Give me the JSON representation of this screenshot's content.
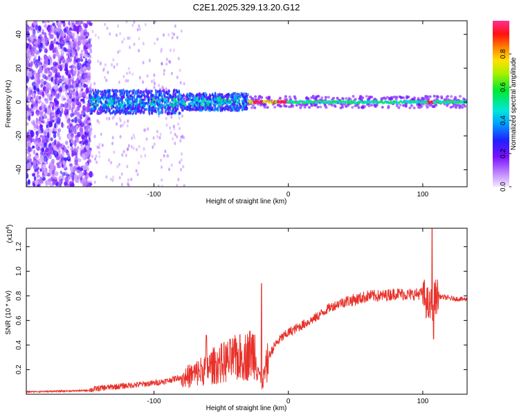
{
  "title": "C2E1.2025.329.13.20.G12",
  "chart_data": [
    {
      "type": "heatmap",
      "title": "C2E1.2025.329.13.20.G12",
      "xlabel": "Height of straight line (km)",
      "ylabel": "Frequency (Hz)",
      "xlim": [
        -195,
        133
      ],
      "ylim": [
        -50,
        48
      ],
      "xticks": [
        -100,
        0,
        100
      ],
      "xtick_labels": [
        "-100",
        "0",
        "100"
      ],
      "yticks": [
        40,
        20,
        0,
        -20,
        -40
      ],
      "ytick_labels": [
        "40",
        "20",
        "0",
        "-20",
        "-40"
      ],
      "colorbar": {
        "label": "Normalized spectral amplitude",
        "range": [
          0,
          1
        ],
        "ticks": [
          0.0,
          0.2,
          0.4,
          0.6,
          0.8
        ],
        "tick_labels": [
          "0.0",
          "0.2",
          "0.4",
          "0.6",
          "0.8"
        ],
        "colormap": "violet-blue-cyan-green-yellow-red-magenta"
      },
      "description_points": [
        {
          "x_range": [
            -195,
            -148
          ],
          "freq_spread": [
            -50,
            48
          ],
          "amplitude": 0.15
        },
        {
          "x_range": [
            -148,
            -30
          ],
          "freq_spread": [
            -6,
            6
          ],
          "amplitude": 0.35
        },
        {
          "x_range": [
            -30,
            0
          ],
          "freq_spread": [
            -2,
            2
          ],
          "amplitude": 0.9
        },
        {
          "x_range": [
            0,
            133
          ],
          "freq_spread": [
            -3,
            3
          ],
          "amplitude": 0.5
        }
      ]
    },
    {
      "type": "line",
      "xlabel": "Height of straight line (km)",
      "ylabel": "SNR (10 * v/v)",
      "yscale_label": "(x10",
      "yscale_exp": "4",
      "xlim": [
        -195,
        133
      ],
      "ylim": [
        0,
        1.35
      ],
      "xticks": [
        -100,
        0,
        100
      ],
      "xtick_labels": [
        "-100",
        "0",
        "100"
      ],
      "yticks": [
        0.2,
        0.4,
        0.6,
        0.8,
        1.0,
        1.2
      ],
      "ytick_labels": [
        "0.2",
        "0.4",
        "0.6",
        "0.8",
        "1.0",
        "1.2"
      ],
      "series": [
        {
          "name": "SNR",
          "color": "#e8312a",
          "x": [
            -195,
            -170,
            -150,
            -140,
            -120,
            -100,
            -90,
            -80,
            -70,
            -60,
            -50,
            -40,
            -30,
            -25,
            -20,
            -15,
            -10,
            -5,
            0,
            10,
            20,
            30,
            40,
            50,
            60,
            70,
            80,
            90,
            100,
            105,
            110,
            120,
            133
          ],
          "y": [
            0.02,
            0.025,
            0.03,
            0.05,
            0.07,
            0.09,
            0.11,
            0.14,
            0.18,
            0.24,
            0.28,
            0.32,
            0.35,
            0.4,
            0.08,
            0.3,
            0.4,
            0.46,
            0.5,
            0.56,
            0.62,
            0.7,
            0.75,
            0.77,
            0.8,
            0.8,
            0.82,
            0.81,
            0.82,
            0.7,
            0.8,
            0.78,
            0.77
          ],
          "peaks": [
            {
              "x": -61,
              "y": 0.48
            },
            {
              "x": -20,
              "y": 0.9
            },
            {
              "x": 107,
              "y": 1.35
            },
            {
              "x": 108,
              "y": 0.45
            }
          ]
        }
      ]
    }
  ]
}
